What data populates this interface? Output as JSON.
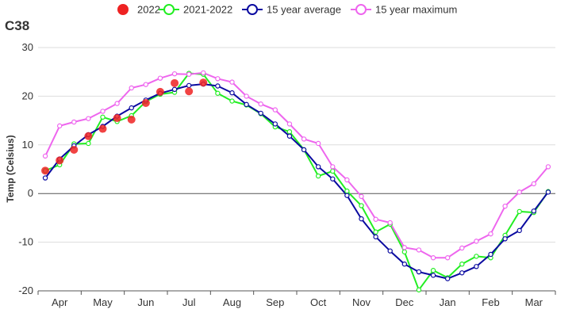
{
  "chart_data": {
    "type": "line",
    "title": "C38",
    "ylabel": "Temp (Celsius)",
    "xlabel": "",
    "ylim": [
      -20,
      30
    ],
    "yticks": [
      -20,
      -10,
      0,
      10,
      20,
      30
    ],
    "months": [
      "Apr",
      "May",
      "Jun",
      "Jul",
      "Aug",
      "Sep",
      "Oct",
      "Nov",
      "Dec",
      "Jan",
      "Feb",
      "Mar"
    ],
    "n_points": 36,
    "grid": "horizontal",
    "legend_position": "top",
    "series": [
      {
        "name": "2022",
        "style": "dots",
        "color": "#ee2222",
        "values": [
          4.7,
          6.8,
          9.0,
          11.8,
          13.3,
          15.5,
          15.2,
          18.6,
          20.9,
          22.7,
          21.0,
          22.8
        ]
      },
      {
        "name": "2021-2022",
        "style": "line",
        "color": "#22ee22",
        "values": [
          4.7,
          5.9,
          10.2,
          10.3,
          15.7,
          14.8,
          16.0,
          18.9,
          20.4,
          20.8,
          24.7,
          24.5,
          20.6,
          19.0,
          18.2,
          16.4,
          13.7,
          12.7,
          9.0,
          3.6,
          4.6,
          0.5,
          -2.5,
          -7.9,
          -6.3,
          -12.0,
          -19.8,
          -15.8,
          -17.3,
          -14.5,
          -12.9,
          -13.2,
          -8.6,
          -3.7,
          -3.9,
          0.4
        ]
      },
      {
        "name": "15 year average",
        "style": "line",
        "color": "#0a0aa0",
        "values": [
          3.2,
          7.1,
          9.8,
          12.1,
          13.8,
          15.9,
          17.6,
          19.2,
          20.6,
          21.4,
          22.2,
          22.5,
          22.1,
          20.7,
          18.3,
          16.5,
          14.3,
          11.8,
          9.0,
          5.5,
          3.0,
          -0.4,
          -5.2,
          -8.9,
          -11.8,
          -14.5,
          -16.1,
          -16.8,
          -17.5,
          -16.3,
          -15.0,
          -12.5,
          -9.3,
          -7.6,
          -3.6,
          0.3
        ]
      },
      {
        "name": "15 year maximum",
        "style": "line",
        "color": "#ee66ee",
        "values": [
          7.7,
          13.9,
          14.7,
          15.4,
          16.9,
          18.5,
          21.7,
          22.4,
          23.7,
          24.6,
          24.5,
          24.8,
          23.6,
          22.9,
          20.0,
          18.4,
          17.2,
          14.3,
          11.2,
          10.3,
          5.5,
          2.8,
          -0.6,
          -5.3,
          -6.0,
          -11.1,
          -11.6,
          -13.2,
          -13.2,
          -11.2,
          -9.8,
          -8.3,
          -2.6,
          0.3,
          2.0,
          5.5
        ]
      }
    ]
  }
}
